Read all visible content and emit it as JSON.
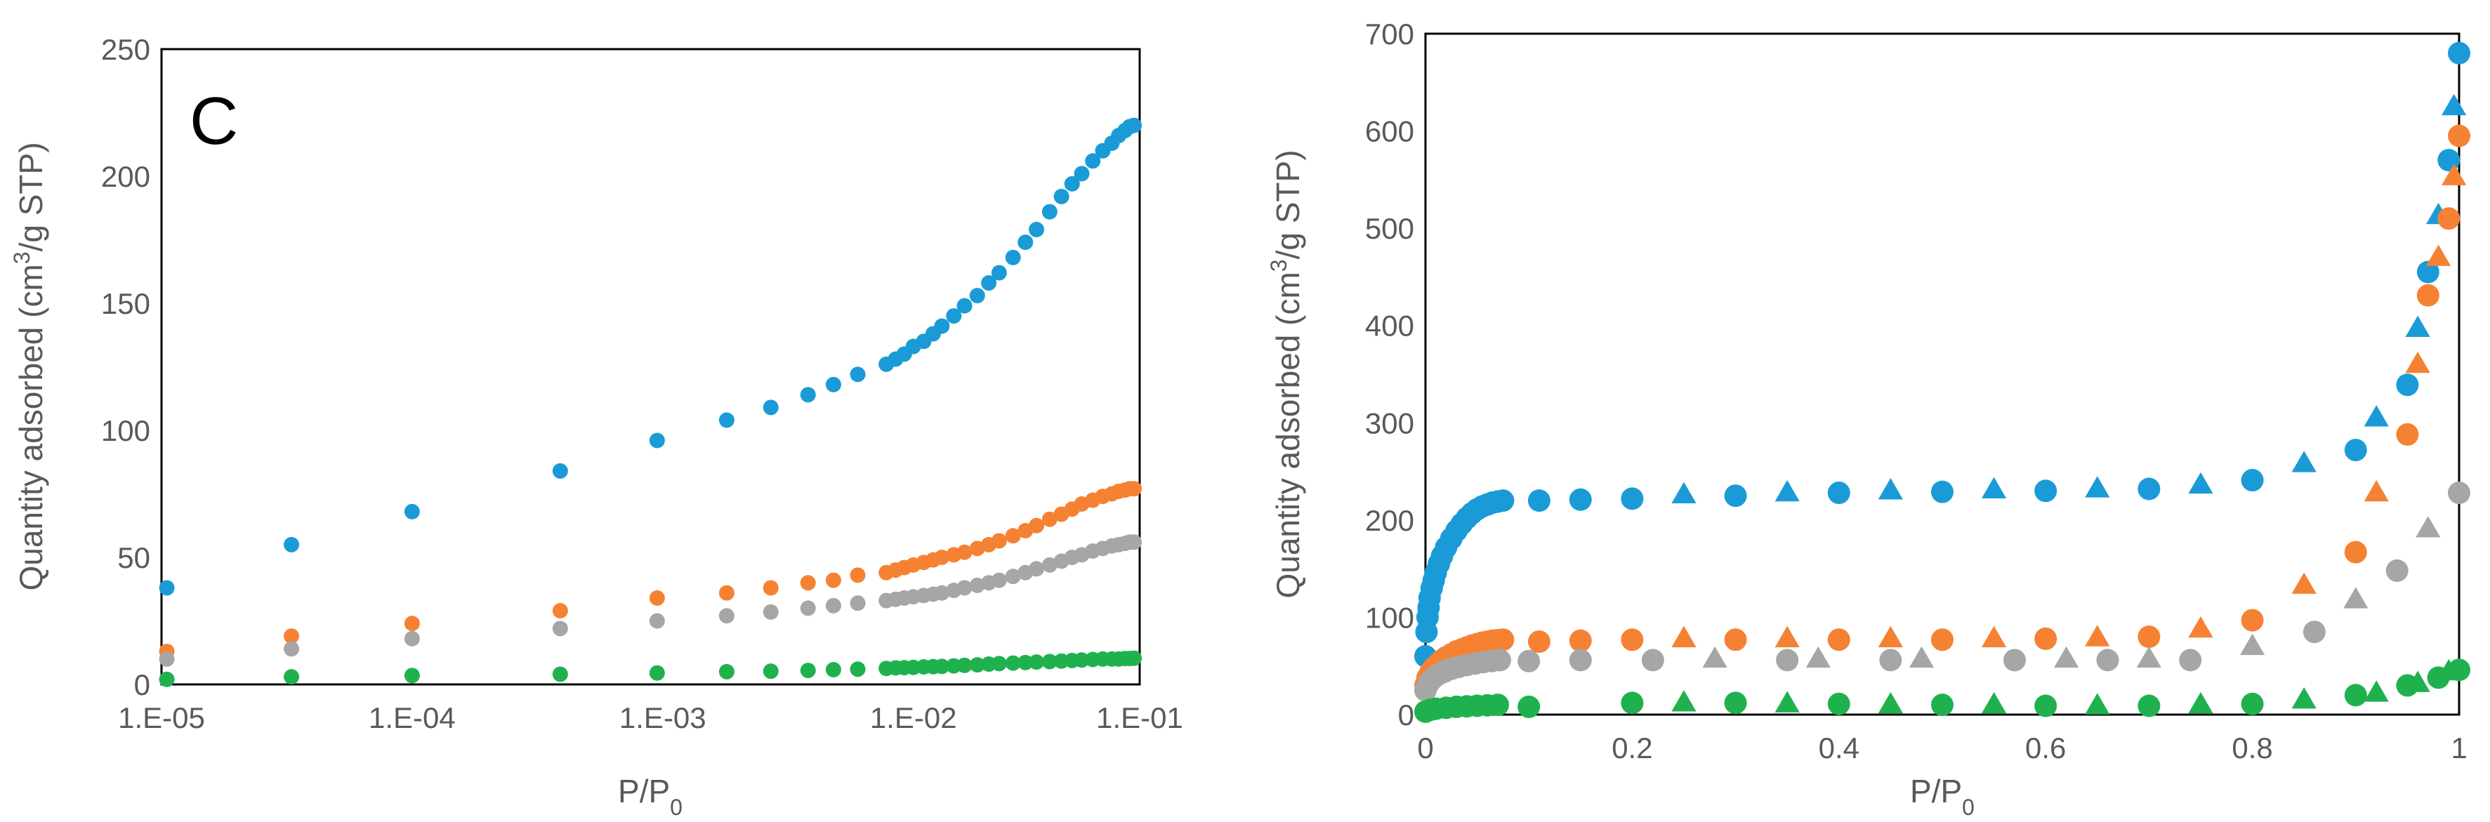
{
  "colors": {
    "blue": "#1a9bd7",
    "orange": "#f58233",
    "gray": "#a6a6a6",
    "green": "#20b14f",
    "frame": "#000000",
    "text": "#595959"
  },
  "chart_data": [
    {
      "type": "scatter",
      "panel_label": "C",
      "xscale": "log",
      "xlabel": "P/P",
      "xlabel_sub": "0",
      "ylabel": "Quantity adsorbed (cm",
      "ylabel_sup": "3",
      "ylabel_rest": "/g STP)",
      "xlim": [
        1e-05,
        0.08
      ],
      "ylim": [
        0,
        250
      ],
      "xticks": [
        1e-05,
        0.0001,
        0.001,
        0.01,
        0.1
      ],
      "xtick_labels": [
        "1.E-05",
        "1.E-04",
        "1.E-03",
        "1.E-02",
        "1.E-01"
      ],
      "yticks": [
        0,
        50,
        100,
        150,
        200,
        250
      ],
      "ytick_labels": [
        "0",
        "50",
        "100",
        "150",
        "200",
        "250"
      ],
      "series": [
        {
          "name": "blue",
          "color": "#1a9bd7",
          "x": [
            1.05e-05,
            3.3e-05,
            0.0001,
            0.00039,
            0.00095,
            0.0018,
            0.0027,
            0.0038,
            0.0048,
            0.006,
            0.0078,
            0.0085,
            0.0092,
            0.01,
            0.011,
            0.012,
            0.013,
            0.0145,
            0.016,
            0.018,
            0.02,
            0.022,
            0.025,
            0.028,
            0.031,
            0.035,
            0.039,
            0.043,
            0.047,
            0.052,
            0.057,
            0.062,
            0.066,
            0.07,
            0.073,
            0.076
          ],
          "y": [
            38,
            55,
            68,
            84,
            96,
            104,
            109,
            114,
            118,
            122,
            126,
            128,
            130,
            133,
            135,
            138,
            141,
            145,
            149,
            153,
            158,
            162,
            168,
            174,
            179,
            186,
            192,
            197,
            201,
            206,
            210,
            213,
            216,
            218,
            219.5,
            220
          ]
        },
        {
          "name": "orange",
          "color": "#f58233",
          "x": [
            1.05e-05,
            3.3e-05,
            0.0001,
            0.00039,
            0.00095,
            0.0018,
            0.0027,
            0.0038,
            0.0048,
            0.006,
            0.0078,
            0.0085,
            0.0092,
            0.01,
            0.011,
            0.012,
            0.013,
            0.0145,
            0.016,
            0.018,
            0.02,
            0.022,
            0.025,
            0.028,
            0.031,
            0.035,
            0.039,
            0.043,
            0.047,
            0.052,
            0.057,
            0.062,
            0.066,
            0.07,
            0.073,
            0.076
          ],
          "y": [
            13,
            19,
            24,
            29,
            34,
            36,
            38,
            40,
            41,
            43,
            44,
            45,
            46,
            47,
            48,
            49,
            50,
            51,
            52,
            53.5,
            55,
            56.5,
            58.5,
            60.5,
            62.5,
            65,
            67,
            69,
            71,
            72.5,
            74,
            75,
            76,
            76.5,
            77,
            77
          ]
        },
        {
          "name": "gray",
          "color": "#a6a6a6",
          "x": [
            1.05e-05,
            3.3e-05,
            0.0001,
            0.00039,
            0.00095,
            0.0018,
            0.0027,
            0.0038,
            0.0048,
            0.006,
            0.0078,
            0.0085,
            0.0092,
            0.01,
            0.011,
            0.012,
            0.013,
            0.0145,
            0.016,
            0.018,
            0.02,
            0.022,
            0.025,
            0.028,
            0.031,
            0.035,
            0.039,
            0.043,
            0.047,
            0.052,
            0.057,
            0.062,
            0.066,
            0.07,
            0.073,
            0.076
          ],
          "y": [
            10,
            14,
            18,
            22,
            25,
            27,
            28.5,
            30,
            31,
            32,
            33,
            33.5,
            34,
            34.5,
            35,
            35.5,
            36,
            37,
            38,
            39,
            40,
            41,
            42.5,
            44,
            45.5,
            47,
            48.5,
            50,
            51,
            52.5,
            53.5,
            54.5,
            55,
            55.5,
            56,
            56
          ]
        },
        {
          "name": "green",
          "color": "#20b14f",
          "x": [
            1.05e-05,
            3.3e-05,
            0.0001,
            0.00039,
            0.00095,
            0.0018,
            0.0027,
            0.0038,
            0.0048,
            0.006,
            0.0078,
            0.0085,
            0.0092,
            0.01,
            0.011,
            0.012,
            0.013,
            0.0145,
            0.016,
            0.018,
            0.02,
            0.022,
            0.025,
            0.028,
            0.031,
            0.035,
            0.039,
            0.043,
            0.047,
            0.052,
            0.057,
            0.062,
            0.066,
            0.07,
            0.073,
            0.076
          ],
          "y": [
            2,
            3,
            3.5,
            4,
            4.5,
            5,
            5.2,
            5.5,
            5.8,
            6,
            6.3,
            6.5,
            6.6,
            6.7,
            6.9,
            7,
            7.1,
            7.3,
            7.5,
            7.7,
            8,
            8.2,
            8.4,
            8.6,
            8.8,
            9,
            9.2,
            9.4,
            9.6,
            9.8,
            10,
            10,
            10,
            10.2,
            10.2,
            10.3
          ]
        }
      ]
    },
    {
      "type": "scatter",
      "xscale": "linear",
      "xlabel": "P/P",
      "xlabel_sub": "0",
      "ylabel": "Quantity adsorbed (cm",
      "ylabel_sup": "3",
      "ylabel_rest": "/g STP)",
      "xlim": [
        0,
        1
      ],
      "ylim": [
        0,
        700
      ],
      "xticks": [
        0,
        0.2,
        0.4,
        0.6,
        0.8,
        1
      ],
      "xtick_labels": [
        "0",
        "0.2",
        "0.4",
        "0.6",
        "0.8",
        "1"
      ],
      "yticks": [
        0,
        100,
        200,
        300,
        400,
        500,
        600,
        700
      ],
      "ytick_labels": [
        "0",
        "100",
        "200",
        "300",
        "400",
        "500",
        "600",
        "700"
      ],
      "series": [
        {
          "name": "blue adsorption",
          "marker": "circle",
          "color": "#1a9bd7",
          "x": [
            0,
            0.001,
            0.002,
            0.003,
            0.004,
            0.006,
            0.008,
            0.01,
            0.013,
            0.016,
            0.02,
            0.025,
            0.03,
            0.035,
            0.04,
            0.045,
            0.05,
            0.055,
            0.06,
            0.065,
            0.07,
            0.075,
            0.11,
            0.15,
            0.2,
            0.3,
            0.4,
            0.5,
            0.6,
            0.7,
            0.8,
            0.9,
            0.95,
            0.97,
            0.99,
            1.0
          ],
          "y": [
            60,
            85,
            100,
            110,
            120,
            130,
            138,
            146,
            155,
            163,
            172,
            181,
            189,
            196,
            202,
            207,
            211,
            214,
            216,
            218,
            219,
            220,
            220,
            221,
            222,
            225,
            228,
            229,
            230,
            232,
            241,
            272,
            339,
            455,
            570,
            680
          ]
        },
        {
          "name": "blue desorption",
          "marker": "triangle",
          "color": "#1a9bd7",
          "x": [
            0.25,
            0.35,
            0.45,
            0.55,
            0.65,
            0.75,
            0.85,
            0.92,
            0.96,
            0.98,
            0.995
          ],
          "y": [
            226,
            228,
            230,
            231,
            232,
            236,
            258,
            305,
            397,
            513,
            625
          ]
        },
        {
          "name": "orange adsorption",
          "marker": "circle",
          "color": "#f58233",
          "x": [
            0,
            0.002,
            0.005,
            0.008,
            0.012,
            0.016,
            0.02,
            0.025,
            0.03,
            0.035,
            0.04,
            0.045,
            0.05,
            0.055,
            0.06,
            0.065,
            0.07,
            0.075,
            0.11,
            0.15,
            0.2,
            0.3,
            0.4,
            0.5,
            0.6,
            0.7,
            0.8,
            0.9,
            0.95,
            0.97,
            0.99,
            1.0
          ],
          "y": [
            30,
            38,
            44,
            48,
            52,
            56,
            59,
            62,
            65,
            67,
            69,
            71,
            72.5,
            74,
            75,
            76,
            76.5,
            77,
            75,
            76,
            77,
            77,
            77,
            77,
            78,
            80,
            97,
            167,
            288,
            431,
            510,
            595
          ]
        },
        {
          "name": "orange desorption",
          "marker": "triangle",
          "color": "#f58233",
          "x": [
            0.25,
            0.35,
            0.45,
            0.55,
            0.65,
            0.75,
            0.85,
            0.92,
            0.96,
            0.98,
            0.995
          ],
          "y": [
            78,
            78,
            78,
            78,
            79,
            88,
            133,
            228,
            360,
            470,
            553
          ]
        },
        {
          "name": "gray adsorption",
          "marker": "circle",
          "color": "#a6a6a6",
          "x": [
            0,
            0.003,
            0.007,
            0.012,
            0.018,
            0.025,
            0.032,
            0.04,
            0.048,
            0.056,
            0.064,
            0.072,
            0.1,
            0.15,
            0.22,
            0.35,
            0.45,
            0.57,
            0.66,
            0.74,
            0.86,
            0.94,
            1.0
          ],
          "y": [
            25,
            32,
            37,
            41,
            44,
            47,
            49,
            51,
            52.5,
            54,
            55,
            56,
            55,
            56,
            56,
            56,
            56,
            56,
            56,
            56,
            85,
            148,
            228
          ]
        },
        {
          "name": "gray desorption",
          "marker": "triangle",
          "color": "#a6a6a6",
          "x": [
            0.28,
            0.38,
            0.48,
            0.62,
            0.7,
            0.8,
            0.9,
            0.97
          ],
          "y": [
            57,
            57,
            57,
            57,
            57,
            70,
            118,
            191
          ]
        },
        {
          "name": "green adsorption",
          "marker": "circle",
          "color": "#20b14f",
          "x": [
            0,
            0.005,
            0.01,
            0.02,
            0.03,
            0.04,
            0.05,
            0.06,
            0.07,
            0.1,
            0.2,
            0.3,
            0.4,
            0.5,
            0.6,
            0.7,
            0.8,
            0.9,
            0.95,
            0.98,
            1.0
          ],
          "y": [
            3,
            5,
            6,
            7,
            8,
            8.5,
            9,
            9.5,
            10,
            8,
            12,
            12,
            11,
            10,
            9,
            9,
            11,
            20,
            30,
            38,
            46
          ]
        },
        {
          "name": "green desorption",
          "marker": "triangle",
          "color": "#20b14f",
          "x": [
            0.25,
            0.35,
            0.45,
            0.55,
            0.65,
            0.75,
            0.85,
            0.92,
            0.96,
            0.99
          ],
          "y": [
            12,
            11,
            10,
            10,
            9,
            10,
            15,
            22,
            32,
            44
          ]
        }
      ]
    }
  ]
}
